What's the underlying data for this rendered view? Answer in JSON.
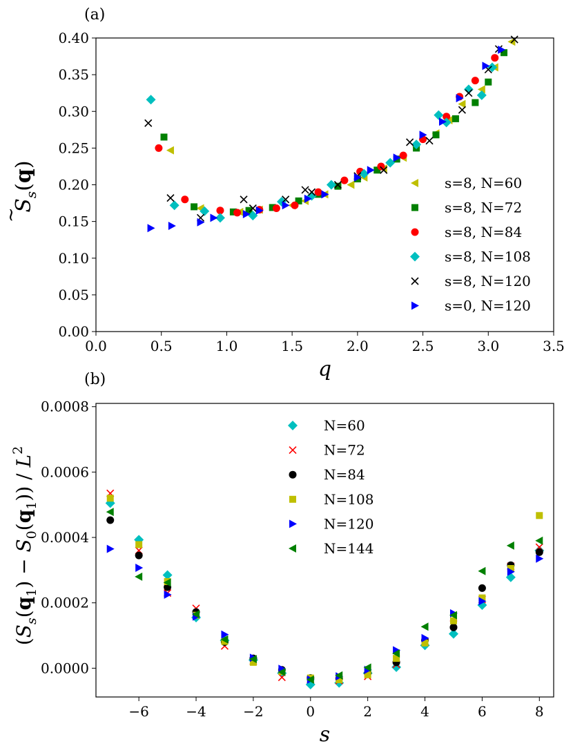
{
  "colors": {
    "yellow": "#bfbf00",
    "green": "#008000",
    "red": "#ff0000",
    "cyan": "#00bfbf",
    "black": "#000000",
    "blue": "#0000ff"
  },
  "chart_data": [
    {
      "type": "scatter",
      "panel_label": "(a)",
      "xlabel": "q",
      "ylabel_parts": [
        "S",
        "s",
        "(",
        "q",
        ")"
      ],
      "xlim": [
        0.0,
        3.5
      ],
      "ylim": [
        0.0,
        0.4
      ],
      "xticks": [
        "0.0",
        "0.5",
        "1.0",
        "1.5",
        "2.0",
        "2.5",
        "3.0",
        "3.5"
      ],
      "yticks": [
        "0.00",
        "0.05",
        "0.10",
        "0.15",
        "0.20",
        "0.25",
        "0.30",
        "0.35",
        "0.40"
      ],
      "legend_position": "lower-right",
      "series": [
        {
          "name": "s=8, N=60",
          "marker": "triangle-left",
          "color": "#bfbf00",
          "x": [
            0.57,
            0.8,
            1.1,
            1.25,
            1.5,
            1.6,
            1.75,
            1.95,
            2.05,
            2.2,
            2.35,
            2.45,
            2.6,
            2.7,
            2.8,
            2.95,
            3.05,
            3.18
          ],
          "y": [
            0.247,
            0.168,
            0.163,
            0.166,
            0.172,
            0.178,
            0.187,
            0.2,
            0.21,
            0.222,
            0.237,
            0.252,
            0.27,
            0.288,
            0.31,
            0.33,
            0.36,
            0.395
          ]
        },
        {
          "name": "s=8, N=72",
          "marker": "square",
          "color": "#008000",
          "x": [
            0.52,
            0.75,
            1.05,
            1.17,
            1.35,
            1.55,
            1.7,
            1.85,
            2.0,
            2.15,
            2.3,
            2.45,
            2.6,
            2.75,
            2.9,
            3.0,
            3.12
          ],
          "y": [
            0.265,
            0.17,
            0.163,
            0.165,
            0.169,
            0.178,
            0.187,
            0.198,
            0.208,
            0.22,
            0.235,
            0.25,
            0.268,
            0.29,
            0.312,
            0.34,
            0.38
          ]
        },
        {
          "name": "s=8, N=84",
          "marker": "circle",
          "color": "#ff0000",
          "x": [
            0.48,
            0.68,
            0.95,
            1.08,
            1.25,
            1.38,
            1.52,
            1.7,
            1.9,
            2.02,
            2.18,
            2.35,
            2.5,
            2.68,
            2.78,
            2.9,
            3.05
          ],
          "y": [
            0.25,
            0.18,
            0.165,
            0.162,
            0.166,
            0.168,
            0.172,
            0.19,
            0.206,
            0.218,
            0.225,
            0.24,
            0.262,
            0.293,
            0.32,
            0.342,
            0.373
          ]
        },
        {
          "name": "s=8, N=108",
          "marker": "diamond",
          "color": "#00bfbf",
          "x": [
            0.42,
            0.6,
            0.83,
            0.95,
            1.2,
            1.42,
            1.65,
            1.8,
            2.05,
            2.25,
            2.45,
            2.62,
            2.68,
            2.85,
            2.95,
            3.03
          ],
          "y": [
            0.316,
            0.172,
            0.164,
            0.155,
            0.158,
            0.177,
            0.185,
            0.2,
            0.215,
            0.23,
            0.255,
            0.295,
            0.285,
            0.33,
            0.322,
            0.36
          ]
        },
        {
          "name": "s=8, N=120",
          "marker": "cross",
          "color": "#000000",
          "x": [
            0.4,
            0.57,
            0.8,
            1.13,
            1.2,
            1.45,
            1.6,
            1.65,
            1.85,
            2.0,
            2.2,
            2.4,
            2.55,
            2.8,
            2.85,
            3.0,
            3.08,
            3.2
          ],
          "y": [
            0.284,
            0.182,
            0.155,
            0.18,
            0.168,
            0.18,
            0.193,
            0.19,
            0.2,
            0.212,
            0.22,
            0.258,
            0.26,
            0.302,
            0.325,
            0.357,
            0.385,
            0.398
          ]
        },
        {
          "name": "s=0, N=120",
          "marker": "triangle-right",
          "color": "#0000ff",
          "x": [
            0.42,
            0.58,
            0.8,
            0.9,
            1.15,
            1.25,
            1.45,
            1.62,
            1.75,
            2.0,
            2.1,
            2.3,
            2.5,
            2.65,
            2.78,
            2.98,
            3.1
          ],
          "y": [
            0.141,
            0.144,
            0.149,
            0.155,
            0.16,
            0.165,
            0.172,
            0.181,
            0.187,
            0.21,
            0.22,
            0.237,
            0.268,
            0.286,
            0.318,
            0.362,
            0.384
          ]
        }
      ]
    },
    {
      "type": "scatter",
      "panel_label": "(b)",
      "xlabel": "s",
      "ylabel_parts": [
        "(",
        "S",
        "s",
        "(",
        "q",
        "1",
        ") − ",
        "S",
        "0",
        "(",
        "q",
        "1",
        ")) / ",
        "L",
        "2"
      ],
      "xlim": [
        -7.5,
        8.5
      ],
      "ylim": [
        -8.8e-05,
        0.00081
      ],
      "xticks": [
        "−6",
        "−4",
        "−2",
        "0",
        "2",
        "4",
        "6",
        "8"
      ],
      "xtick_values": [
        -6,
        -4,
        -2,
        0,
        2,
        4,
        6,
        8
      ],
      "yticks": [
        "0.0000",
        "0.0002",
        "0.0004",
        "0.0006",
        "0.0008"
      ],
      "ytick_values": [
        0.0,
        0.0002,
        0.0004,
        0.0006,
        0.0008
      ],
      "legend_position": "upper-center",
      "series": [
        {
          "name": "N=60",
          "marker": "diamond",
          "color": "#00bfbf",
          "x": [
            -7,
            -6,
            -5,
            -4,
            -3,
            -2,
            -1,
            0,
            1,
            2,
            3,
            4,
            5,
            6,
            7,
            8
          ],
          "y": [
            0.000505,
            0.000393,
            0.000285,
            0.000155,
            8.5e-05,
            2.5e-05,
            -1.5e-05,
            -5e-05,
            -4.5e-05,
            -1.5e-05,
            3e-06,
            7e-05,
            0.000105,
            0.000193,
            0.000278,
            0.00036
          ]
        },
        {
          "name": "N=72",
          "marker": "cross",
          "color": "#ff0000",
          "x": [
            -7,
            -6,
            -5,
            -4,
            -3,
            -2,
            -1,
            0,
            1,
            2,
            3,
            4,
            5,
            6,
            7,
            8
          ],
          "y": [
            0.000535,
            0.00036,
            0.00023,
            0.000183,
            6.8e-05,
            2.2e-05,
            -2.8e-05,
            -3.5e-05,
            -3.8e-05,
            -2.5e-05,
            1.2e-05,
            8e-05,
            0.000135,
            0.00021,
            0.000312,
            0.00037
          ]
        },
        {
          "name": "N=84",
          "marker": "circle",
          "color": "#000000",
          "x": [
            -7,
            -6,
            -5,
            -4,
            -3,
            -2,
            -1,
            0,
            1,
            2,
            3,
            4,
            5,
            6,
            7,
            8
          ],
          "y": [
            0.000453,
            0.000345,
            0.000248,
            0.000172,
            8e-05,
            3e-05,
            -5e-06,
            -3e-05,
            -3.2e-05,
            -1.5e-05,
            1.8e-05,
            8.5e-05,
            0.000125,
            0.000245,
            0.000315,
            0.000355
          ]
        },
        {
          "name": "N=108",
          "marker": "square",
          "color": "#bfbf00",
          "x": [
            -7,
            -6,
            -5,
            -4,
            -3,
            -2,
            -1,
            0,
            1,
            2,
            3,
            4,
            5,
            6,
            7,
            8
          ],
          "y": [
            0.00052,
            0.000378,
            0.000265,
            0.000162,
            8.2e-05,
            1.8e-05,
            -1e-05,
            -3e-05,
            -3.5e-05,
            -2e-05,
            3e-05,
            7.7e-05,
            0.000145,
            0.000215,
            0.000305,
            0.000467
          ]
        },
        {
          "name": "N=120",
          "marker": "triangle-right",
          "color": "#0000ff",
          "x": [
            -7,
            -6,
            -5,
            -4,
            -3,
            -2,
            -1,
            0,
            1,
            2,
            3,
            4,
            5,
            6,
            7,
            8
          ],
          "y": [
            0.000365,
            0.000307,
            0.000225,
            0.000158,
            0.000103,
            3.2e-05,
            -2e-06,
            -3.5e-05,
            -2.5e-05,
            -5e-06,
            5.5e-05,
            9.2e-05,
            0.000168,
            0.000205,
            0.000295,
            0.000335
          ]
        },
        {
          "name": "N=144",
          "marker": "triangle-left",
          "color": "#008000",
          "x": [
            -7,
            -6,
            -5,
            -4,
            -3,
            -2,
            -1,
            0,
            1,
            2,
            3,
            4,
            5,
            6,
            7,
            8
          ],
          "y": [
            0.000478,
            0.00028,
            0.000262,
            0.000165,
            8.8e-05,
            2.8e-05,
            -1.2e-05,
            -3.5e-05,
            -2.2e-05,
            2e-06,
            4.5e-05,
            0.000127,
            0.000162,
            0.000297,
            0.000375,
            0.00039
          ]
        }
      ]
    }
  ]
}
